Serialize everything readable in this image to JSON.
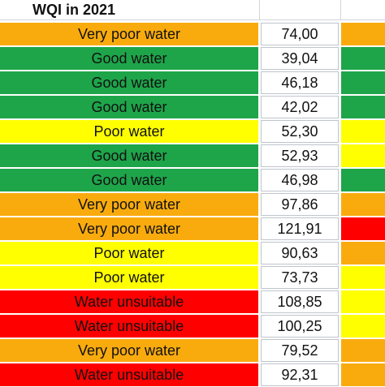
{
  "header": {
    "title": "WQI in 2021"
  },
  "colors": {
    "very_poor": "#f9ab0e",
    "good": "#1ea54a",
    "poor": "#ffff00",
    "unsuitable": "#fe0000"
  },
  "rows": [
    {
      "label": "Very poor water",
      "value": "74,00",
      "label_color": "c-orange",
      "extra_color": "c-orange"
    },
    {
      "label": "Good water",
      "value": "39,04",
      "label_color": "c-green",
      "extra_color": "c-green"
    },
    {
      "label": "Good water",
      "value": "46,18",
      "label_color": "c-green",
      "extra_color": "c-green"
    },
    {
      "label": "Good water",
      "value": "42,02",
      "label_color": "c-green",
      "extra_color": "c-green"
    },
    {
      "label": "Poor water",
      "value": "52,30",
      "label_color": "c-yellow",
      "extra_color": "c-yellow"
    },
    {
      "label": "Good water",
      "value": "52,93",
      "label_color": "c-green",
      "extra_color": "c-yellow"
    },
    {
      "label": "Good water",
      "value": "46,98",
      "label_color": "c-green",
      "extra_color": "c-green"
    },
    {
      "label": "Very poor water",
      "value": "97,86",
      "label_color": "c-orange",
      "extra_color": "c-orange"
    },
    {
      "label": "Very poor water",
      "value": "121,91",
      "label_color": "c-orange",
      "extra_color": "c-red"
    },
    {
      "label": "Poor water",
      "value": "90,63",
      "label_color": "c-yellow",
      "extra_color": "c-orange"
    },
    {
      "label": "Poor water",
      "value": "73,73",
      "label_color": "c-yellow",
      "extra_color": "c-yellow"
    },
    {
      "label": "Water unsuitable",
      "value": "108,85",
      "label_color": "c-red",
      "extra_color": "c-yellow"
    },
    {
      "label": "Water unsuitable",
      "value": "100,25",
      "label_color": "c-red",
      "extra_color": "c-yellow"
    },
    {
      "label": "Very poor water",
      "value": "79,52",
      "label_color": "c-orange",
      "extra_color": "c-orange"
    },
    {
      "label": "Water unsuitable",
      "value": "92,31",
      "label_color": "c-red",
      "extra_color": "c-orange"
    }
  ]
}
